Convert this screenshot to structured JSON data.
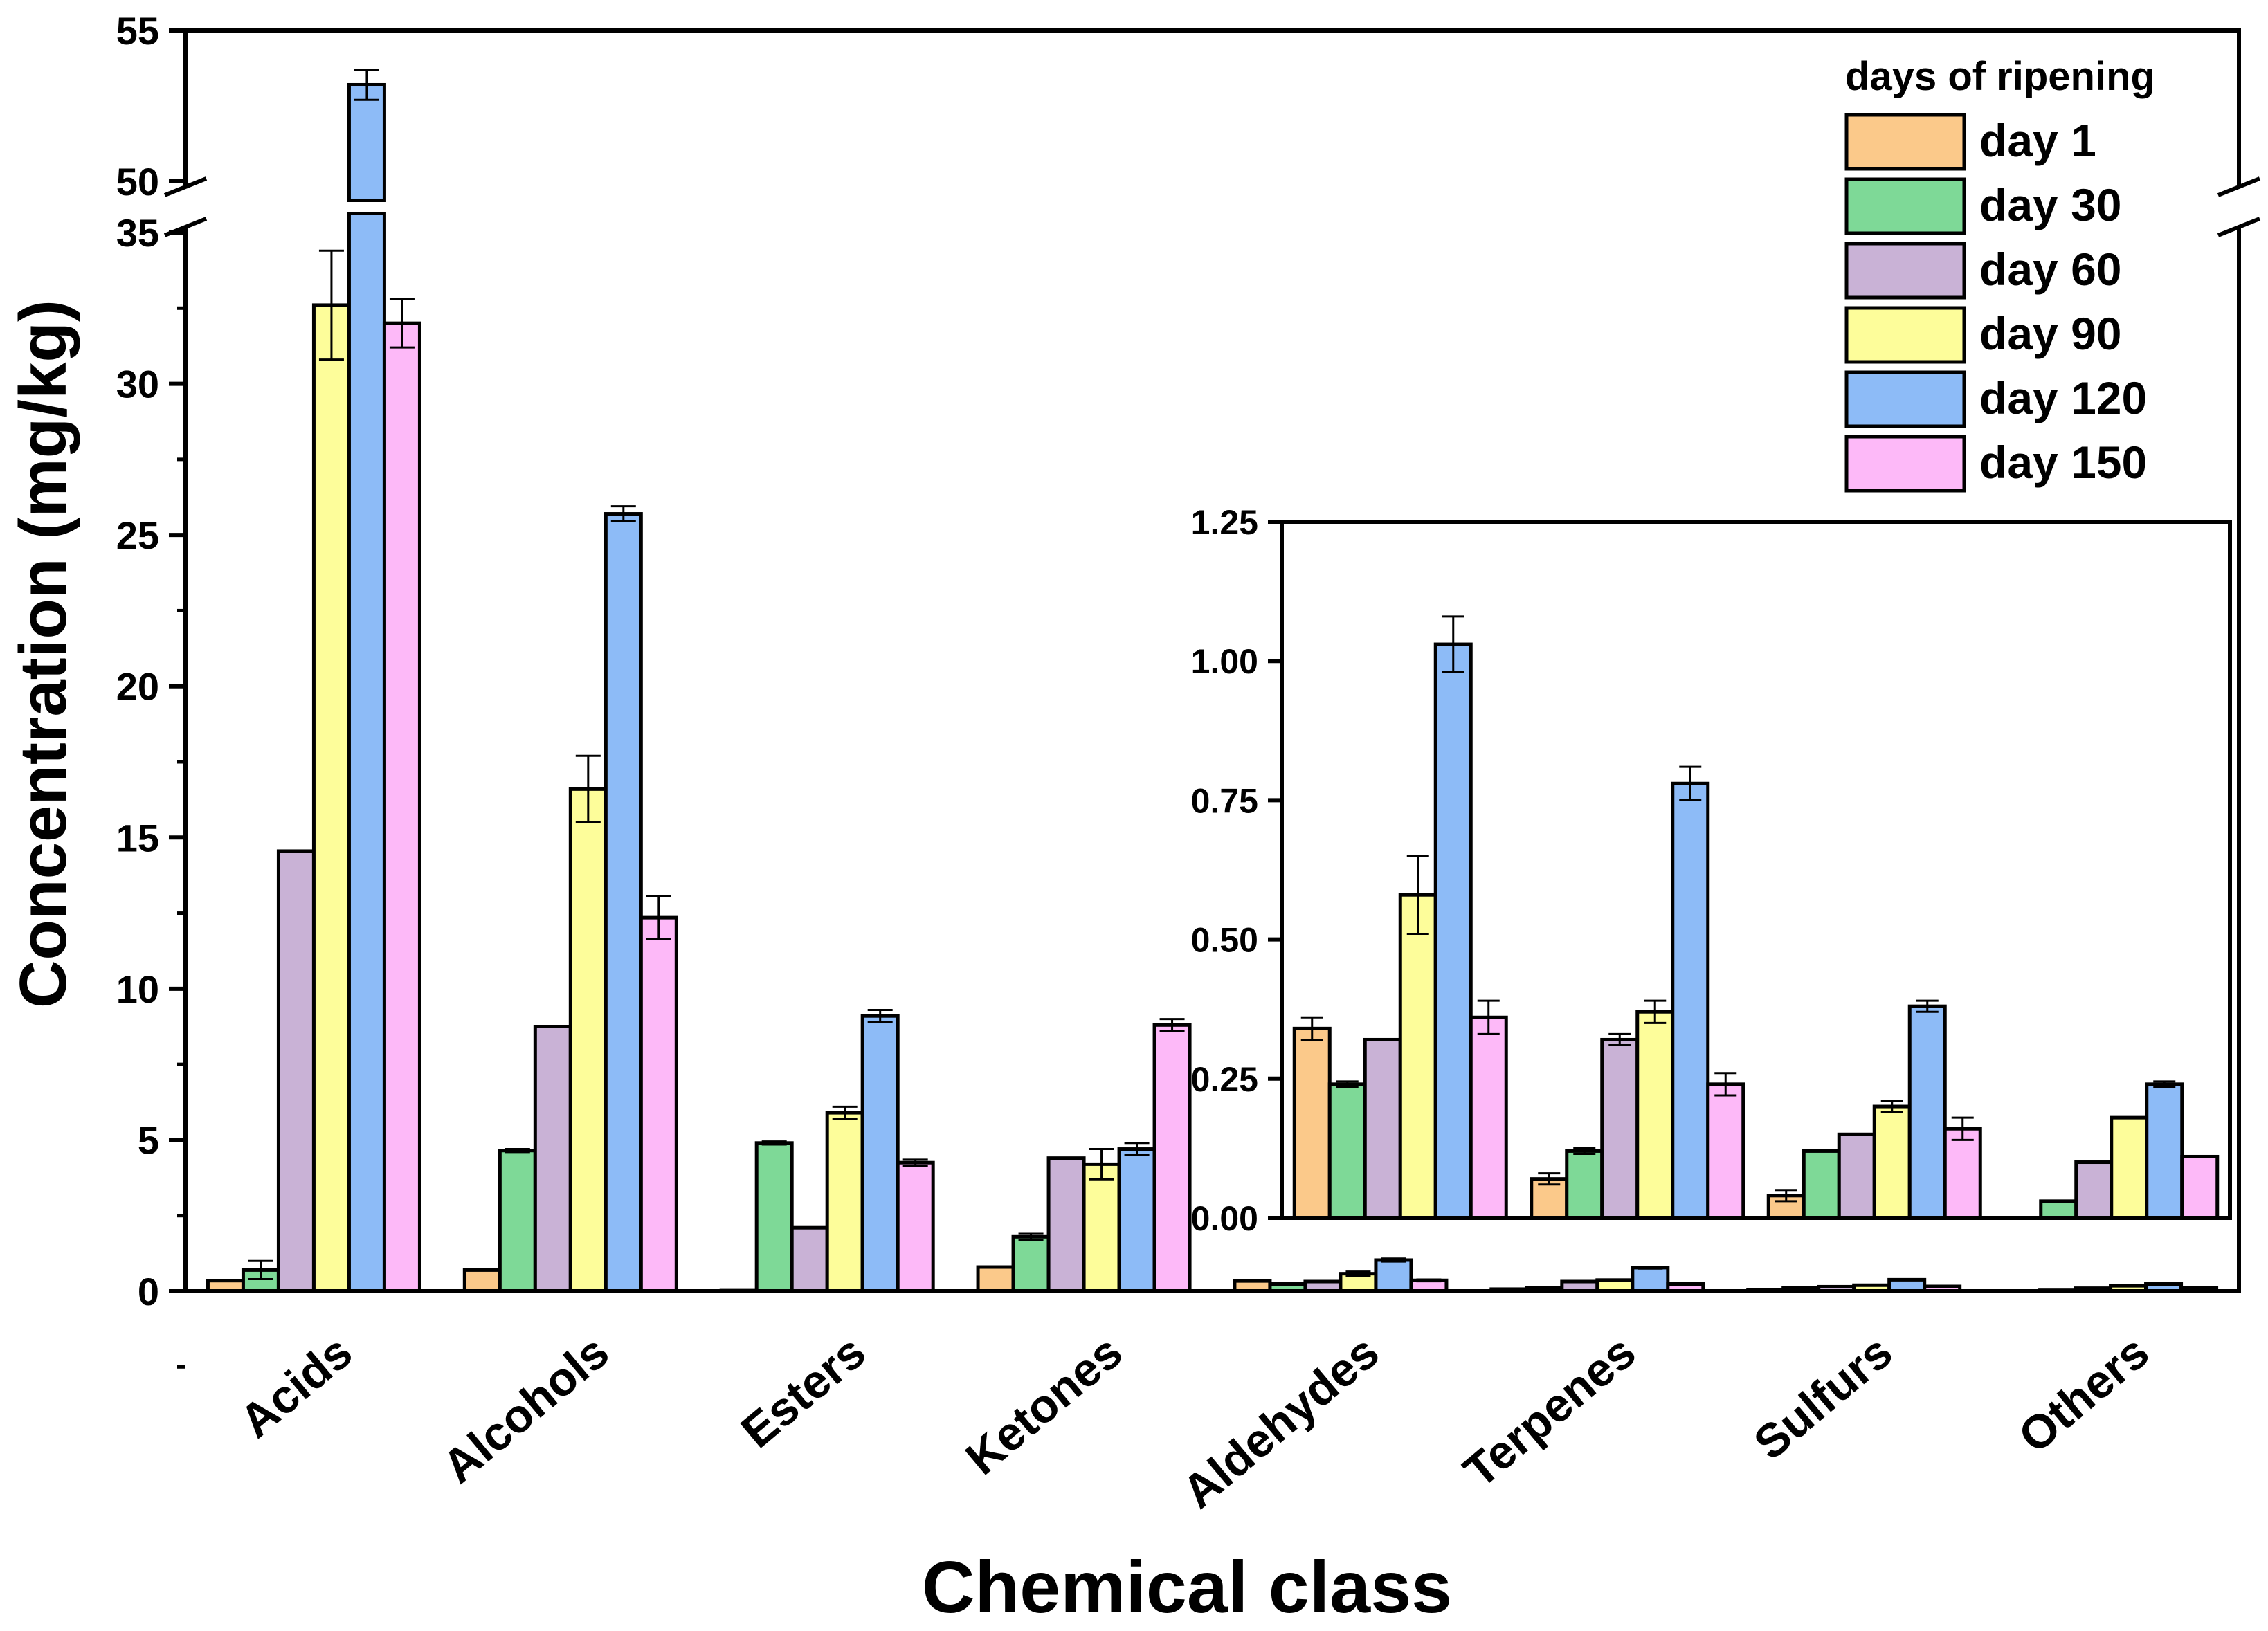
{
  "chart_data": {
    "type": "bar",
    "xlabel": "Chemical class",
    "ylabel": "Concentration (mg/kg)",
    "categories": [
      "Acids",
      "Alcohols",
      "Esters",
      "Ketones",
      "Aldehydes",
      "Terpenes",
      "Sulfurs",
      "Others"
    ],
    "y_axis_break": {
      "lower_range": [
        0,
        35
      ],
      "upper_range": [
        50,
        55
      ]
    },
    "lower_ticks": [
      0,
      5,
      10,
      15,
      20,
      25,
      30,
      35
    ],
    "upper_ticks": [
      50,
      55
    ],
    "legend": {
      "title": "days of ripening",
      "placement": "top-right"
    },
    "series": [
      {
        "name": "day 1",
        "color": "#FBC98A",
        "values": [
          0.35,
          0.7,
          0.02,
          0.8,
          0.34,
          0.07,
          0.04,
          0.0
        ],
        "errors": [
          0,
          0,
          0,
          0,
          0.02,
          0.01,
          0.01,
          0
        ]
      },
      {
        "name": "day 30",
        "color": "#7ED997",
        "values": [
          0.7,
          4.65,
          4.9,
          1.8,
          0.24,
          0.12,
          0.12,
          0.03
        ],
        "errors": [
          0.3,
          0.05,
          0.05,
          0.1,
          0.005,
          0.005,
          0,
          0
        ]
      },
      {
        "name": "day 60",
        "color": "#C9B2D6",
        "values": [
          14.55,
          8.75,
          2.1,
          4.4,
          0.32,
          0.32,
          0.15,
          0.1
        ],
        "errors": [
          0,
          0,
          0,
          0,
          0,
          0.01,
          0,
          0
        ]
      },
      {
        "name": "day 90",
        "color": "#FDFD9A",
        "values": [
          32.6,
          16.6,
          5.9,
          4.2,
          0.58,
          0.37,
          0.2,
          0.18
        ],
        "errors": [
          1.8,
          1.1,
          0.2,
          0.5,
          0.07,
          0.02,
          0.01,
          0
        ]
      },
      {
        "name": "day 120",
        "color": "#8DBBF7",
        "values": [
          53.2,
          25.7,
          9.1,
          4.7,
          1.03,
          0.78,
          0.38,
          0.24
        ],
        "errors": [
          0.5,
          0.25,
          0.2,
          0.2,
          0.05,
          0.03,
          0.01,
          0.005
        ]
      },
      {
        "name": "day 150",
        "color": "#FDB9F8",
        "values": [
          32.0,
          12.35,
          4.25,
          8.8,
          0.36,
          0.24,
          0.16,
          0.11
        ],
        "errors": [
          0.8,
          0.7,
          0.1,
          0.2,
          0.03,
          0.02,
          0.02,
          0
        ]
      }
    ],
    "inset": {
      "categories": [
        "Aldehydes",
        "Terpenes",
        "Sulfurs",
        "Others"
      ],
      "ylim": [
        0,
        1.25
      ],
      "ticks": [
        "0.00",
        "0.25",
        "0.50",
        "0.75",
        "1.00",
        "1.25"
      ]
    }
  }
}
